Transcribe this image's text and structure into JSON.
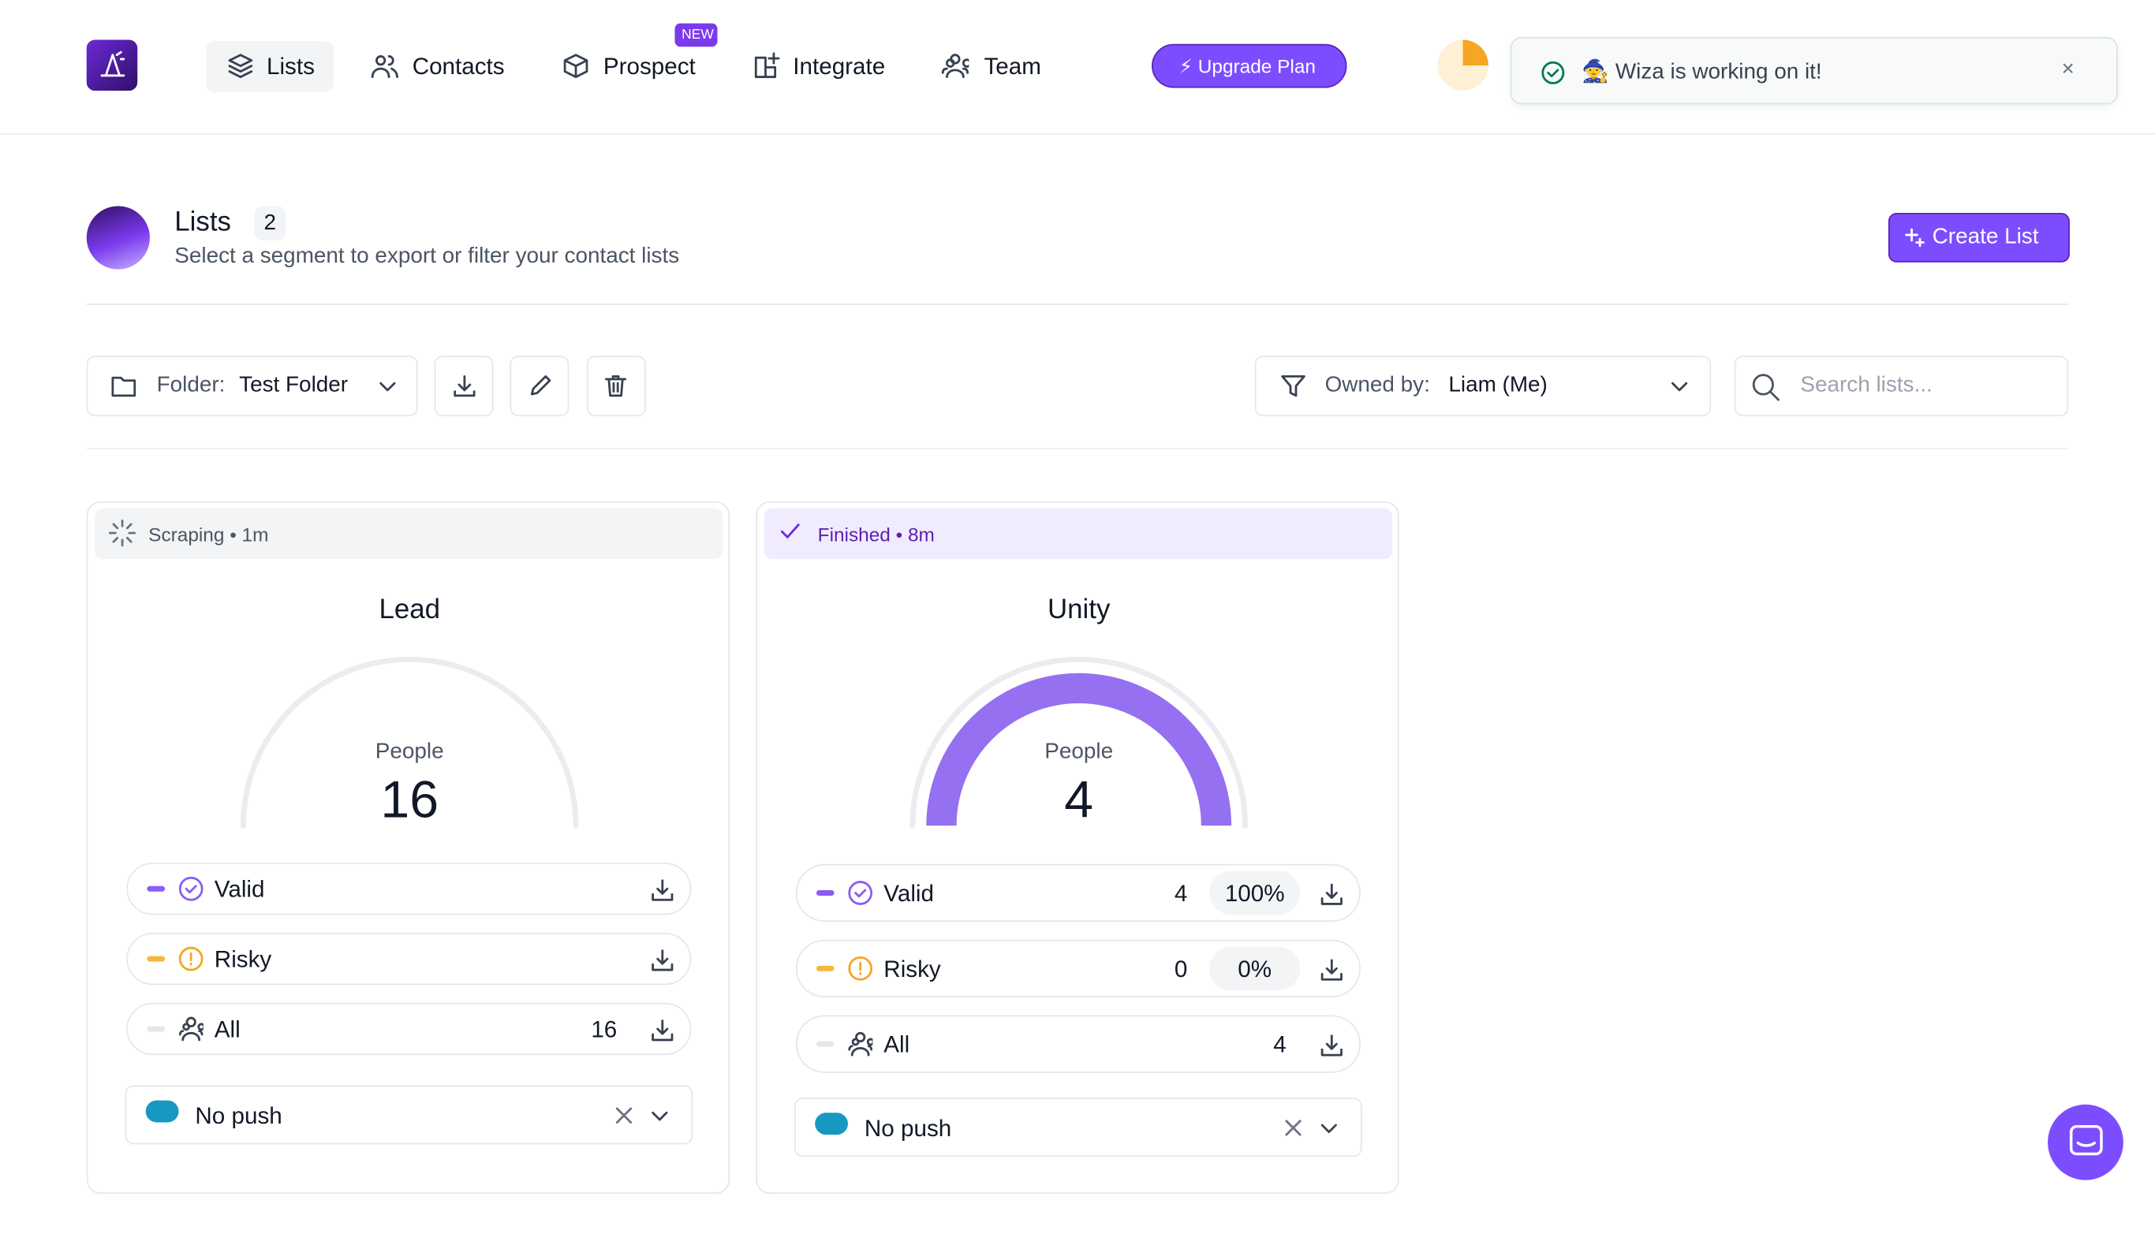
{
  "nav": {
    "items": [
      "Lists",
      "Contacts",
      "Prospect",
      "Integrate",
      "Team"
    ],
    "badge": "NEW",
    "upgrade": "⚡ Upgrade Plan"
  },
  "toast": {
    "text": "🧙 Wiza is working on it!",
    "close": "×"
  },
  "header": {
    "title": "Lists",
    "count": 2,
    "subtitle": "Select a segment to export or filter your contact lists",
    "create_button": "Create List"
  },
  "toolbar": {
    "folder_label": "Folder:",
    "folder_value": "Test Folder",
    "owner_label": "Owned by:",
    "owner_value": "Liam (Me)",
    "search_placeholder": "Search lists..."
  },
  "cards": [
    {
      "status": "Scraping • 1m",
      "title": "Lead",
      "people_label": "People",
      "people": 16,
      "rows": [
        {
          "label": "Valid"
        },
        {
          "label": "Risky"
        },
        {
          "label": "All",
          "count": 16
        }
      ],
      "push": "No push"
    },
    {
      "status": "Finished • 8m",
      "title": "Unity",
      "people_label": "People",
      "people": 4,
      "rows": [
        {
          "label": "Valid",
          "count": 4,
          "percent": "100%"
        },
        {
          "label": "Risky",
          "count": 0,
          "percent": "0%"
        },
        {
          "label": "All",
          "count": 4
        }
      ],
      "push": "No push"
    }
  ]
}
